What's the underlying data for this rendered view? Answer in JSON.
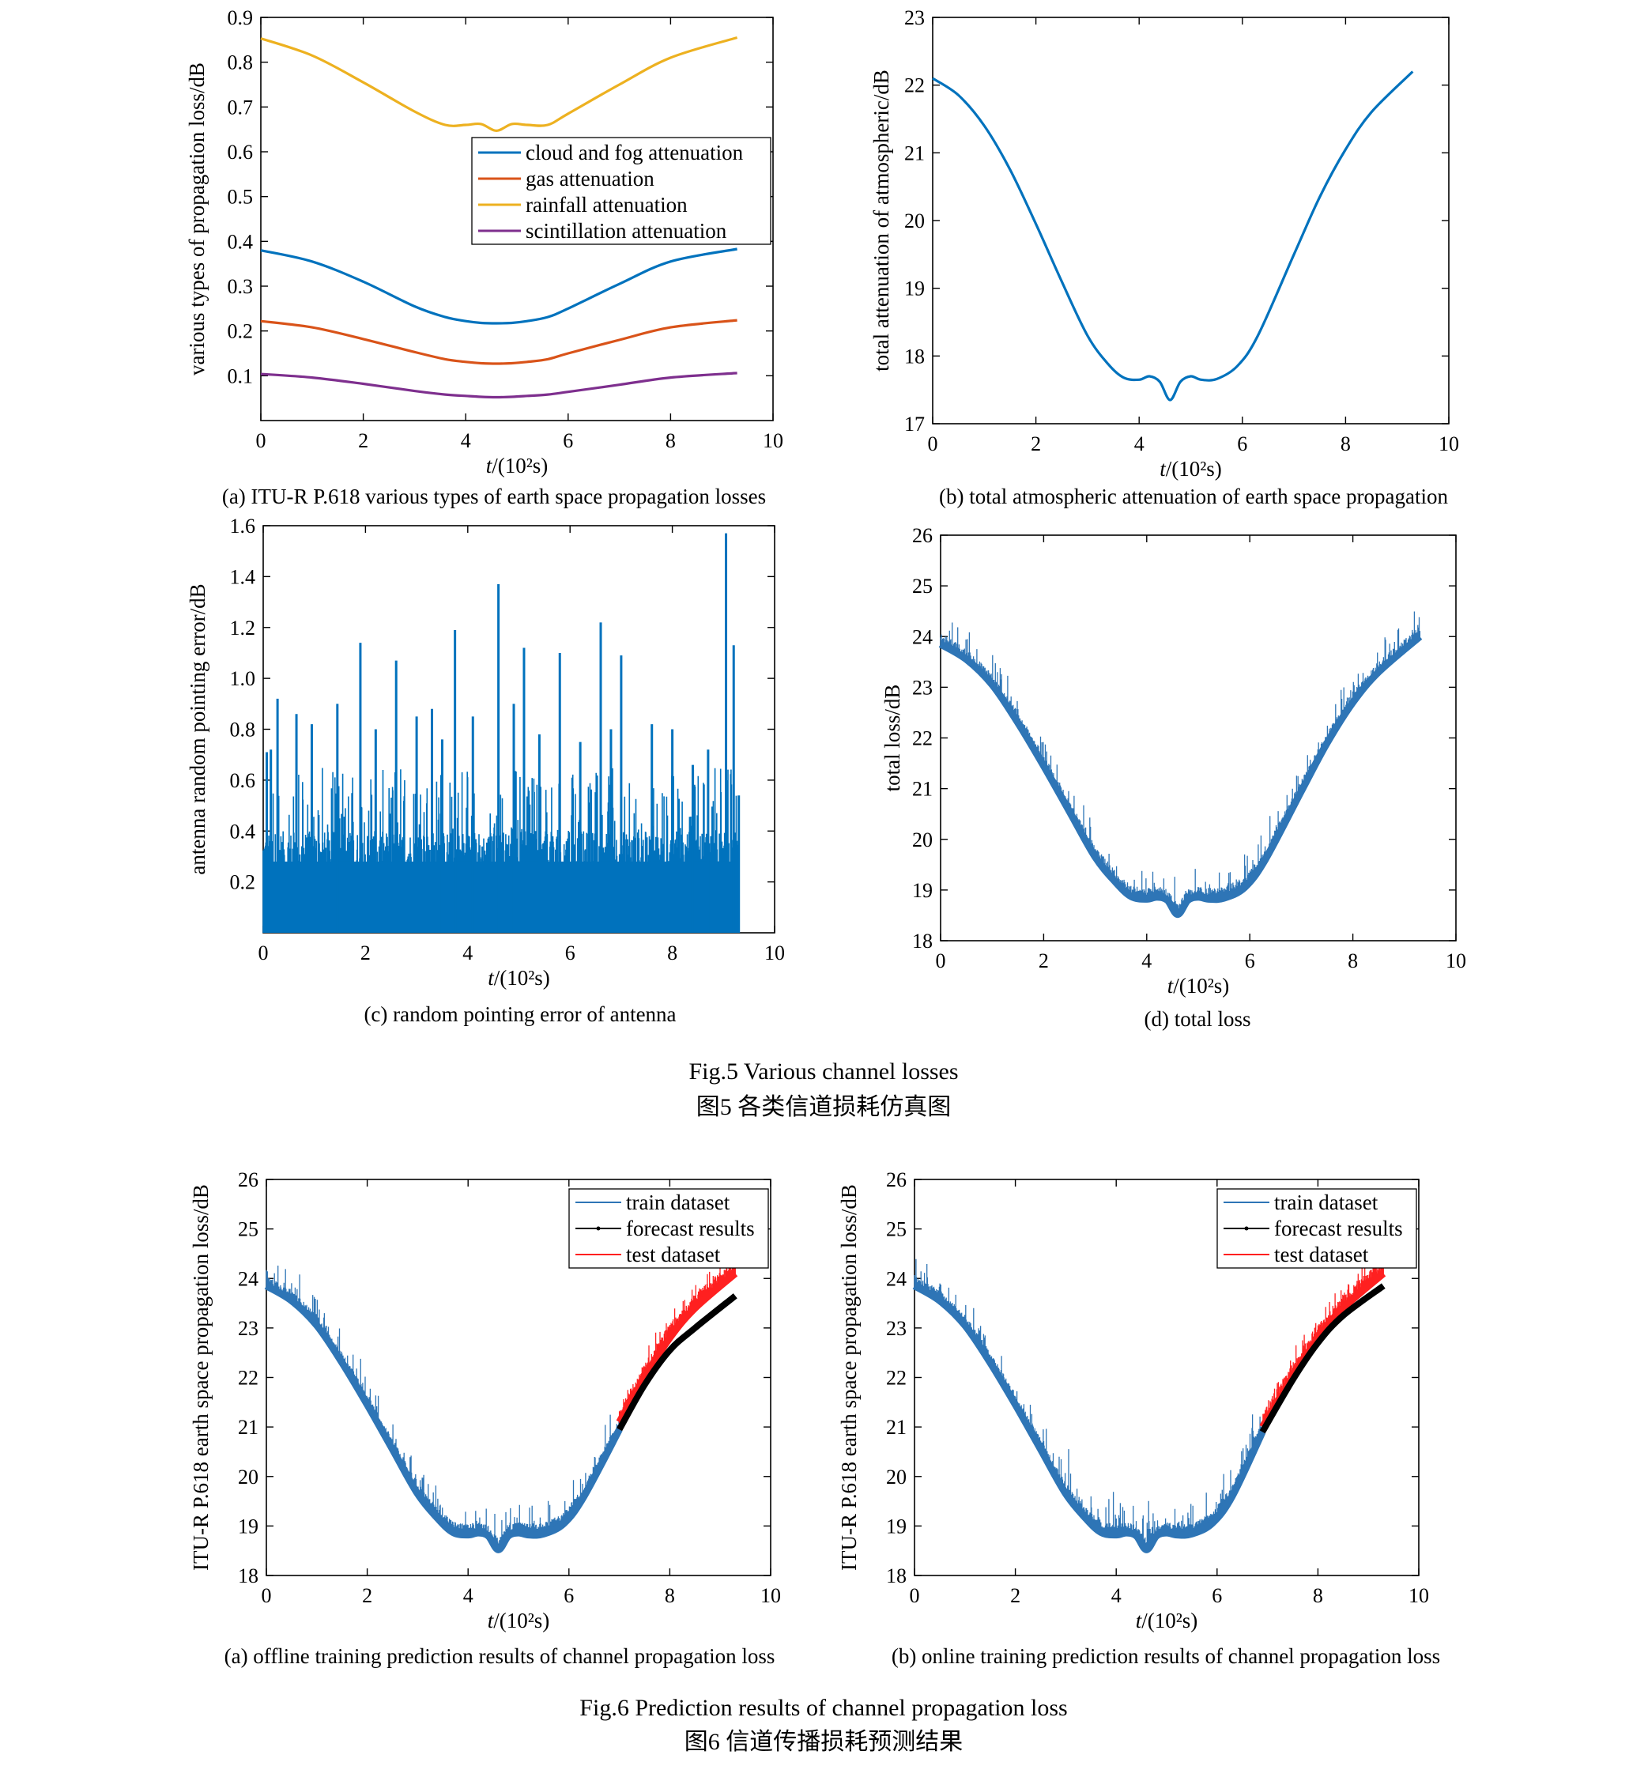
{
  "colors": {
    "blue": "#0072BD",
    "red": "#D95319",
    "yellow": "#EDB120",
    "purple": "#7E2F8E",
    "train": "#2E75B6",
    "forecast": "#000000",
    "test": "#FF2020"
  },
  "fig5": {
    "caption_en": "Fig.5 Various channel losses",
    "caption_zh": "图5 各类信道损耗仿真图"
  },
  "fig6": {
    "caption_en": "Fig.6 Prediction results of channel propagation loss",
    "caption_zh": "图6  信道传播损耗预测结果"
  },
  "xaxis_label": "t/(10²s)",
  "chart_data": [
    {
      "id": "a5",
      "type": "line",
      "panel_caption": "(a) ITU-R P.618 various types of earth space propagation losses",
      "xlabel": "t/(10²s)",
      "ylabel": "various types of propagation loss/dB",
      "xlim": [
        0,
        10
      ],
      "ylim": [
        0,
        0.9
      ],
      "xticks": [
        "0",
        "2",
        "4",
        "6",
        "8",
        "10"
      ],
      "yticks": [
        "0.1",
        "0.2",
        "0.3",
        "0.4",
        "0.5",
        "0.6",
        "0.7",
        "0.8",
        "0.9"
      ],
      "legend_position": "upper-right",
      "x": [
        0,
        1,
        2,
        3,
        3.6,
        4.0,
        4.3,
        4.6,
        4.9,
        5.2,
        5.6,
        6.0,
        7,
        8,
        9.3
      ],
      "series": [
        {
          "name": "cloud and fog attenuation",
          "color_key": "blue",
          "values": [
            0.38,
            0.355,
            0.31,
            0.255,
            0.231,
            0.222,
            0.218,
            0.217,
            0.218,
            0.222,
            0.231,
            0.25,
            0.305,
            0.355,
            0.383
          ]
        },
        {
          "name": "gas attenuation",
          "color_key": "red",
          "values": [
            0.222,
            0.208,
            0.182,
            0.153,
            0.137,
            0.131,
            0.128,
            0.127,
            0.128,
            0.131,
            0.137,
            0.15,
            0.18,
            0.208,
            0.224
          ]
        },
        {
          "name": "rainfall attenuation",
          "color_key": "yellow",
          "values": [
            0.853,
            0.815,
            0.755,
            0.69,
            0.66,
            0.66,
            0.662,
            0.647,
            0.662,
            0.66,
            0.66,
            0.685,
            0.75,
            0.81,
            0.855
          ]
        },
        {
          "name": "scintillation attenuation",
          "color_key": "purple",
          "values": [
            0.104,
            0.096,
            0.082,
            0.066,
            0.058,
            0.055,
            0.053,
            0.052,
            0.053,
            0.055,
            0.058,
            0.064,
            0.08,
            0.096,
            0.106
          ]
        }
      ]
    },
    {
      "id": "b5",
      "type": "line",
      "panel_caption": "(b) total atmospheric attenuation of earth space propagation",
      "xlabel": "t/(10²s)",
      "ylabel": "total attenuation of atmospheric/dB",
      "xlim": [
        0,
        10
      ],
      "ylim": [
        17,
        23
      ],
      "xticks": [
        "0",
        "2",
        "4",
        "6",
        "8",
        "10"
      ],
      "yticks": [
        "17",
        "18",
        "19",
        "20",
        "21",
        "22",
        "23"
      ],
      "x": [
        0,
        0.5,
        1,
        1.5,
        2,
        2.5,
        3,
        3.4,
        3.7,
        4.0,
        4.2,
        4.4,
        4.6,
        4.8,
        5.0,
        5.2,
        5.5,
        5.9,
        6.3,
        7,
        7.5,
        8,
        8.5,
        9.3
      ],
      "series": [
        {
          "name": "",
          "color_key": "blue",
          "values": [
            22.1,
            21.85,
            21.4,
            20.75,
            19.95,
            19.1,
            18.3,
            17.88,
            17.68,
            17.65,
            17.7,
            17.62,
            17.35,
            17.62,
            17.7,
            17.65,
            17.66,
            17.85,
            18.3,
            19.5,
            20.35,
            21.05,
            21.6,
            22.2
          ]
        }
      ]
    },
    {
      "id": "c5",
      "type": "line",
      "panel_caption": "(c) random pointing error of antenna",
      "xlabel": "t/(10²s)",
      "ylabel": "antenna random pointing error/dB",
      "xlim": [
        0,
        10
      ],
      "ylim": [
        0,
        1.6
      ],
      "xticks": [
        "0",
        "2",
        "4",
        "6",
        "8",
        "10"
      ],
      "yticks": [
        "0.2",
        "0.4",
        "0.6",
        "0.8",
        "1.0",
        "1.2",
        "1.4",
        "1.6"
      ],
      "baseline_band": [
        0,
        0.4
      ],
      "spikes": [
        {
          "x": 0.07,
          "y": 0.71
        },
        {
          "x": 0.15,
          "y": 0.72
        },
        {
          "x": 0.28,
          "y": 0.92
        },
        {
          "x": 0.65,
          "y": 0.86
        },
        {
          "x": 0.95,
          "y": 0.82
        },
        {
          "x": 1.45,
          "y": 0.9
        },
        {
          "x": 1.9,
          "y": 1.14
        },
        {
          "x": 2.2,
          "y": 0.8
        },
        {
          "x": 2.6,
          "y": 1.07
        },
        {
          "x": 3.0,
          "y": 0.85
        },
        {
          "x": 3.3,
          "y": 0.88
        },
        {
          "x": 3.5,
          "y": 0.76
        },
        {
          "x": 3.75,
          "y": 1.19
        },
        {
          "x": 4.1,
          "y": 0.85
        },
        {
          "x": 4.6,
          "y": 1.37
        },
        {
          "x": 4.9,
          "y": 0.9
        },
        {
          "x": 5.1,
          "y": 1.12
        },
        {
          "x": 5.4,
          "y": 0.78
        },
        {
          "x": 5.8,
          "y": 1.1
        },
        {
          "x": 6.2,
          "y": 0.75
        },
        {
          "x": 6.6,
          "y": 1.22
        },
        {
          "x": 6.8,
          "y": 0.8
        },
        {
          "x": 7.0,
          "y": 1.09
        },
        {
          "x": 7.6,
          "y": 0.82
        },
        {
          "x": 8.0,
          "y": 0.8
        },
        {
          "x": 8.4,
          "y": 0.66
        },
        {
          "x": 8.7,
          "y": 0.72
        },
        {
          "x": 9.05,
          "y": 1.57
        },
        {
          "x": 9.2,
          "y": 1.13
        },
        {
          "x": 9.3,
          "y": 0.54
        }
      ]
    },
    {
      "id": "d5",
      "type": "line",
      "panel_caption": "(d) total loss",
      "xlabel": "t/(10²s)",
      "ylabel": "total loss/dB",
      "xlim": [
        0,
        10
      ],
      "ylim": [
        18,
        26
      ],
      "xticks": [
        "0",
        "2",
        "4",
        "6",
        "8",
        "10"
      ],
      "yticks": [
        "18",
        "19",
        "20",
        "21",
        "22",
        "23",
        "24",
        "25",
        "26"
      ],
      "x": [
        0,
        0.5,
        1,
        1.5,
        2,
        2.5,
        3,
        3.4,
        3.7,
        4.0,
        4.2,
        4.4,
        4.6,
        4.8,
        5.0,
        5.2,
        5.5,
        5.9,
        6.3,
        7,
        7.5,
        8,
        8.5,
        9.3
      ],
      "series": [
        {
          "name": "total loss",
          "color_key": "train",
          "values": [
            23.85,
            23.55,
            23.05,
            22.3,
            21.45,
            20.55,
            19.65,
            19.15,
            18.87,
            18.82,
            18.86,
            18.8,
            18.52,
            18.8,
            18.86,
            18.82,
            18.84,
            19.05,
            19.6,
            20.95,
            21.9,
            22.7,
            23.3,
            24.0
          ]
        }
      ]
    },
    {
      "id": "a6",
      "type": "line",
      "panel_caption": "(a) offline training prediction results of channel propagation loss",
      "xlabel": "t/(10²s)",
      "ylabel": "ITU-R P.618 earth space propagation loss/dB",
      "xlim": [
        0,
        10
      ],
      "ylim": [
        18,
        26
      ],
      "xticks": [
        "0",
        "2",
        "4",
        "6",
        "8",
        "10"
      ],
      "yticks": [
        "18",
        "19",
        "20",
        "21",
        "22",
        "23",
        "24",
        "25",
        "26"
      ],
      "legend_position": "upper-right",
      "legend": [
        "train dataset",
        "forecast results",
        "test dataset"
      ],
      "train": {
        "x": [
          0,
          0.5,
          1,
          1.5,
          2,
          2.5,
          3,
          3.4,
          3.7,
          4.0,
          4.2,
          4.4,
          4.6,
          4.8,
          5.0,
          5.2,
          5.5,
          5.9,
          6.3,
          7.0
        ],
        "values": [
          23.85,
          23.55,
          23.05,
          22.3,
          21.45,
          20.55,
          19.65,
          19.15,
          18.87,
          18.82,
          18.86,
          18.8,
          18.52,
          18.8,
          18.86,
          18.82,
          18.84,
          19.05,
          19.6,
          20.95
        ]
      },
      "test": {
        "x": [
          7.0,
          7.5,
          8,
          8.5,
          9.3
        ],
        "values": [
          21.1,
          22.0,
          22.8,
          23.4,
          24.1
        ]
      },
      "forecast": {
        "x": [
          7.0,
          7.5,
          8,
          8.5,
          9.3
        ],
        "values": [
          20.95,
          21.85,
          22.55,
          23.0,
          23.65
        ]
      }
    },
    {
      "id": "b6",
      "type": "line",
      "panel_caption": "(b) online training prediction results of channel propagation loss",
      "xlabel": "t/(10²s)",
      "ylabel": "ITU-R P.618 earth space propagation loss/dB",
      "xlim": [
        0,
        10
      ],
      "ylim": [
        18,
        26
      ],
      "xticks": [
        "0",
        "2",
        "4",
        "6",
        "8",
        "10"
      ],
      "yticks": [
        "18",
        "19",
        "20",
        "21",
        "22",
        "23",
        "24",
        "25",
        "26"
      ],
      "legend_position": "upper-right",
      "legend": [
        "train dataset",
        "forecast results",
        "test dataset"
      ],
      "train": {
        "x": [
          0,
          0.5,
          1,
          1.5,
          2,
          2.5,
          3,
          3.4,
          3.7,
          4.0,
          4.2,
          4.4,
          4.6,
          4.8,
          5.0,
          5.2,
          5.5,
          5.9,
          6.3,
          6.9
        ],
        "values": [
          23.85,
          23.55,
          23.05,
          22.3,
          21.45,
          20.55,
          19.65,
          19.15,
          18.87,
          18.82,
          18.86,
          18.8,
          18.52,
          18.8,
          18.86,
          18.82,
          18.84,
          19.05,
          19.6,
          20.9
        ]
      },
      "test": {
        "x": [
          6.9,
          7.5,
          8,
          8.5,
          9.3
        ],
        "values": [
          21.0,
          22.0,
          22.8,
          23.4,
          24.1
        ]
      },
      "forecast": {
        "x": [
          6.9,
          7.5,
          8,
          8.5,
          9.3
        ],
        "values": [
          20.9,
          21.95,
          22.7,
          23.25,
          23.85
        ]
      }
    }
  ]
}
